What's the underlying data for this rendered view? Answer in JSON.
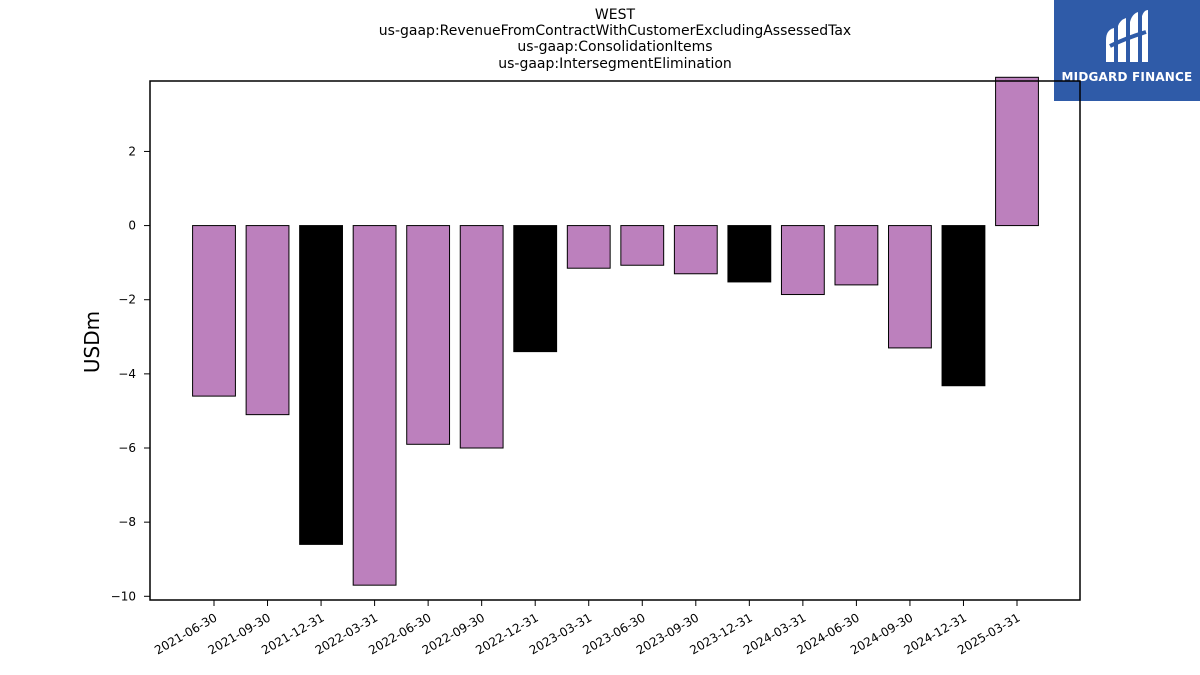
{
  "header": {
    "title_lines": [
      "WEST",
      "us-gaap:RevenueFromContractWithCustomerExcludingAssessedTax",
      "us-gaap:ConsolidationItems",
      "us-gaap:IntersegmentElimination"
    ]
  },
  "logo": {
    "text": "MIDGARD FINANCE",
    "background": "#2f5ba8"
  },
  "chart_data": {
    "type": "bar",
    "title": "WEST\nus-gaap:RevenueFromContractWithCustomerExcludingAssessedTax\nus-gaap:ConsolidationItems\nus-gaap:IntersegmentElimination",
    "ylabel": "USDm",
    "xlabel": "",
    "categories": [
      "2021-06-30",
      "2021-09-30",
      "2021-12-31",
      "2022-03-31",
      "2022-06-30",
      "2022-09-30",
      "2022-12-31",
      "2023-03-31",
      "2023-06-30",
      "2023-09-30",
      "2023-12-31",
      "2024-03-31",
      "2024-06-30",
      "2024-09-30",
      "2024-12-31",
      "2025-03-31"
    ],
    "values": [
      -4.6,
      -5.1,
      -8.6,
      -9.7,
      -5.9,
      -6.0,
      -3.4,
      -1.15,
      -1.07,
      -1.3,
      -1.52,
      -1.86,
      -1.6,
      -3.3,
      -4.32,
      4.0
    ],
    "bar_colors": [
      "#bc80bd",
      "#bc80bd",
      "#000000",
      "#bc80bd",
      "#bc80bd",
      "#bc80bd",
      "#000000",
      "#bc80bd",
      "#bc80bd",
      "#bc80bd",
      "#000000",
      "#bc80bd",
      "#bc80bd",
      "#bc80bd",
      "#000000",
      "#bc80bd"
    ],
    "yticks": [
      -10,
      -8,
      -6,
      -4,
      -2,
      0,
      2
    ],
    "ylim": [
      -10.1,
      3.9
    ],
    "grid": false,
    "legend": "none"
  }
}
